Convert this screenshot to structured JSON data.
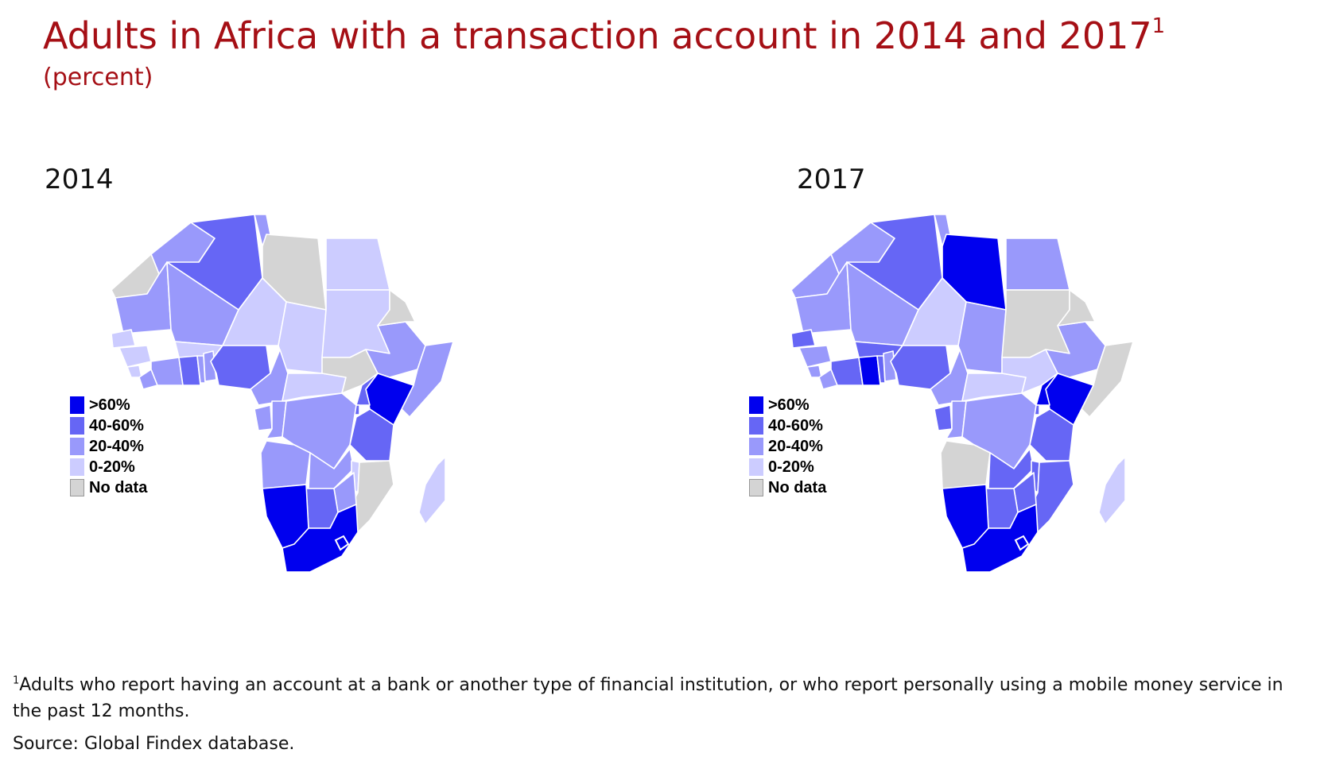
{
  "title": "Adults in Africa with a transaction account in 2014 and 2017",
  "title_sup": "1",
  "subtitle": "(percent)",
  "panels": [
    {
      "year": "2014"
    },
    {
      "year": "2017"
    }
  ],
  "legend": [
    {
      "label": ">60%",
      "color": "#0000ee"
    },
    {
      "label": "40-60%",
      "color": "#6666f5"
    },
    {
      "label": "20-40%",
      "color": "#9999fb"
    },
    {
      "label": "0-20%",
      "color": "#ccccff"
    },
    {
      "label": "No data",
      "color": "#d4d4d4"
    }
  ],
  "footnote_sup": "1",
  "footnote": "Adults who report having an account at a bank or another type of financial institution, or who report personally using a mobile money service in the past 12 months.",
  "source": "Source: Global Findex database.",
  "map_data": {
    "2014": {
      "Morocco": "20-40%",
      "Western Sahara": "No data",
      "Algeria": "40-60%",
      "Tunisia": "20-40%",
      "Libya": "No data",
      "Egypt": "0-20%",
      "Mauritania": "20-40%",
      "Mali": "20-40%",
      "Niger": "0-20%",
      "Chad": "0-20%",
      "Sudan": "0-20%",
      "Senegal": "0-20%",
      "Guinea": "0-20%",
      "Sierra Leone": "0-20%",
      "Liberia": "20-40%",
      "Cote d'Ivoire": "20-40%",
      "Burkina Faso": "0-20%",
      "Ghana": "40-60%",
      "Togo": "20-40%",
      "Benin": "20-40%",
      "Nigeria": "40-60%",
      "Cameroon": "20-40%",
      "Central African Republic": "0-20%",
      "South Sudan": "No data",
      "Ethiopia": "20-40%",
      "Eritrea": "No data",
      "Somalia": "20-40%",
      "Kenya": ">60%",
      "Uganda": "40-60%",
      "Rwanda": "40-60%",
      "Tanzania": "40-60%",
      "Gabon": "20-40%",
      "Congo": "20-40%",
      "DR Congo": "20-40%",
      "Angola": "20-40%",
      "Zambia": "20-40%",
      "Malawi": "0-20%",
      "Mozambique": "No data",
      "Zimbabwe": "20-40%",
      "Botswana": "40-60%",
      "Namibia": ">60%",
      "South Africa": ">60%",
      "Madagascar": "0-20%"
    },
    "2017": {
      "Morocco": "20-40%",
      "Western Sahara": "20-40%",
      "Algeria": "40-60%",
      "Tunisia": "20-40%",
      "Libya": ">60%",
      "Egypt": "20-40%",
      "Mauritania": "20-40%",
      "Mali": "20-40%",
      "Niger": "0-20%",
      "Chad": "20-40%",
      "Sudan": "No data",
      "Senegal": "40-60%",
      "Guinea": "20-40%",
      "Sierra Leone": "20-40%",
      "Liberia": "20-40%",
      "Cote d'Ivoire": "40-60%",
      "Burkina Faso": "40-60%",
      "Ghana": ">60%",
      "Togo": "40-60%",
      "Benin": "20-40%",
      "Nigeria": "40-60%",
      "Cameroon": "20-40%",
      "Central African Republic": "0-20%",
      "South Sudan": "0-20%",
      "Ethiopia": "20-40%",
      "Eritrea": "No data",
      "Somalia": "No data",
      "Kenya": ">60%",
      "Uganda": ">60%",
      "Rwanda": "40-60%",
      "Tanzania": "40-60%",
      "Gabon": "40-60%",
      "Congo": "20-40%",
      "DR Congo": "20-40%",
      "Angola": "No data",
      "Zambia": "40-60%",
      "Malawi": "40-60%",
      "Mozambique": "40-60%",
      "Zimbabwe": "40-60%",
      "Botswana": "40-60%",
      "Namibia": ">60%",
      "South Africa": ">60%",
      "Madagascar": "0-20%"
    }
  }
}
